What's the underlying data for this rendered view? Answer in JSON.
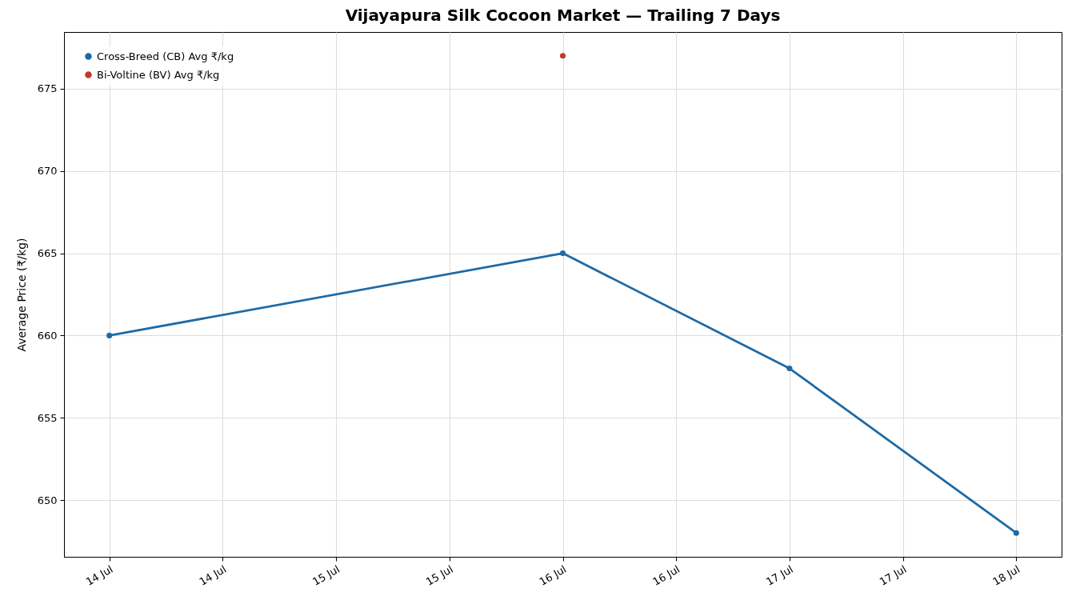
{
  "chart_data": {
    "type": "line",
    "title": "Vijayapura Silk Cocoon Market — Trailing 7 Days",
    "ylabel": "Average Price (₹/kg)",
    "x": [
      "--07-14",
      "--07-16",
      "--07-17",
      "--07-18"
    ],
    "series": [
      {
        "name": "Cross-Breed (CB) Avg ₹/kg",
        "color": "#1f6aa5",
        "values": [
          660,
          665,
          658,
          648
        ]
      },
      {
        "name": "Bi-Voltine (BV) Avg ₹/kg",
        "color": "#c0392b",
        "values": [
          null,
          677,
          null,
          null
        ]
      }
    ],
    "xlim": [
      "--07-13T19:12",
      "--07-18T04:48"
    ],
    "xticks": [
      {
        "value": "--07-14",
        "label": "14 Jul"
      },
      {
        "value": "--07-14T12:00",
        "label": "14 Jul"
      },
      {
        "value": "--07-15",
        "label": "15 Jul"
      },
      {
        "value": "--07-15T12:00",
        "label": "15 Jul"
      },
      {
        "value": "--07-16",
        "label": "16 Jul"
      },
      {
        "value": "--07-16T12:00",
        "label": "16 Jul"
      },
      {
        "value": "--07-17",
        "label": "17 Jul"
      },
      {
        "value": "--07-17T12:00",
        "label": "17 Jul"
      },
      {
        "value": "--07-18",
        "label": "18 Jul"
      }
    ],
    "ylim": [
      646.55,
      678.45
    ],
    "yticks": [
      650,
      655,
      660,
      665,
      670,
      675
    ],
    "grid": true,
    "legend": "top left",
    "marker": "circle",
    "line_style": "solid"
  }
}
